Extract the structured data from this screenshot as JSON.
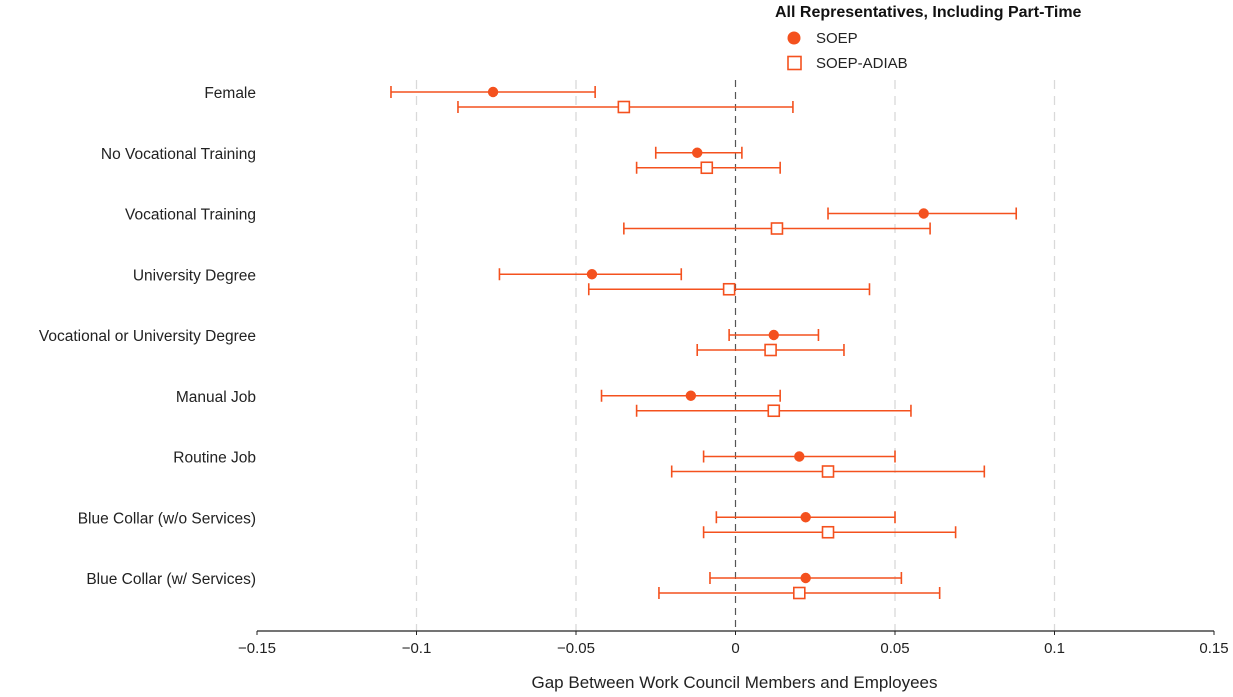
{
  "chart_data": {
    "type": "scatter",
    "subtype": "coefficient-plot-with-error-bars",
    "orientation": "horizontal",
    "xlabel": "Gap Between Work Council Members and Employees",
    "ylabel": "",
    "xlim": [
      -0.15,
      0.15
    ],
    "x_ticks": [
      -0.15,
      -0.1,
      -0.05,
      0,
      0.05,
      0.1,
      0.15
    ],
    "x_tick_labels": [
      "−0.15",
      "−0.1",
      "−0.05",
      "0",
      "0.05",
      "0.1",
      "0.15"
    ],
    "grid": "vertical dashed at -0.1, -0.05, 0.05, 0.1",
    "zero_line": true,
    "legend": {
      "title": "All Representatives, Including Part-Time",
      "position": "top-right"
    },
    "categories": [
      "Female",
      "No Vocational Training",
      "Vocational Training",
      "University Degree",
      "Vocational or University Degree",
      "Manual Job",
      "Routine Job",
      "Blue Collar (w/o Services)",
      "Blue Collar (w/ Services)"
    ],
    "series": [
      {
        "name": "SOEP",
        "marker": "filled-circle",
        "color": "#f4511e",
        "points": [
          {
            "estimate": -0.076,
            "ci_low": -0.108,
            "ci_high": -0.044
          },
          {
            "estimate": -0.012,
            "ci_low": -0.025,
            "ci_high": 0.002
          },
          {
            "estimate": 0.059,
            "ci_low": 0.029,
            "ci_high": 0.088
          },
          {
            "estimate": -0.045,
            "ci_low": -0.074,
            "ci_high": -0.017
          },
          {
            "estimate": 0.012,
            "ci_low": -0.002,
            "ci_high": 0.026
          },
          {
            "estimate": -0.014,
            "ci_low": -0.042,
            "ci_high": 0.014
          },
          {
            "estimate": 0.02,
            "ci_low": -0.01,
            "ci_high": 0.05
          },
          {
            "estimate": 0.022,
            "ci_low": -0.006,
            "ci_high": 0.05
          },
          {
            "estimate": 0.022,
            "ci_low": -0.008,
            "ci_high": 0.052
          }
        ]
      },
      {
        "name": "SOEP-ADIAB",
        "marker": "hollow-square",
        "color": "#f4511e",
        "points": [
          {
            "estimate": -0.035,
            "ci_low": -0.087,
            "ci_high": 0.018
          },
          {
            "estimate": -0.009,
            "ci_low": -0.031,
            "ci_high": 0.014
          },
          {
            "estimate": 0.013,
            "ci_low": -0.035,
            "ci_high": 0.061
          },
          {
            "estimate": -0.002,
            "ci_low": -0.046,
            "ci_high": 0.042
          },
          {
            "estimate": 0.011,
            "ci_low": -0.012,
            "ci_high": 0.034
          },
          {
            "estimate": 0.012,
            "ci_low": -0.031,
            "ci_high": 0.055
          },
          {
            "estimate": 0.029,
            "ci_low": -0.02,
            "ci_high": 0.078
          },
          {
            "estimate": 0.029,
            "ci_low": -0.01,
            "ci_high": 0.069
          },
          {
            "estimate": 0.02,
            "ci_low": -0.024,
            "ci_high": 0.064
          }
        ]
      }
    ]
  }
}
